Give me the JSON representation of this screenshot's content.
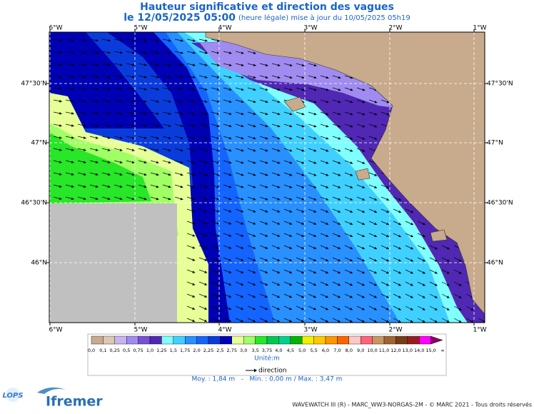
{
  "header": {
    "title": "Hauteur significative et direction des vagues",
    "date": "le 12/05/2025 05:00",
    "update": "(heure légale) mise à jour du 10/05/2025 05h19"
  },
  "map": {
    "lon_labels": [
      "6°W",
      "5°W",
      "4°W",
      "3°W",
      "2°W",
      "1°W"
    ],
    "lat_labels": [
      "47°30'N",
      "47°N",
      "46°30'N",
      "46°N"
    ]
  },
  "legend": {
    "labels": [
      "0,0",
      "0,1",
      "0,25",
      "0,5",
      "0,75",
      "1,0",
      "1,25",
      "1,5",
      "1,75",
      "2,0",
      "2,25",
      "2,5",
      "2,75",
      "3,0",
      "3,5",
      "3,75",
      "4,0",
      "4,5",
      "5,0",
      "5,5",
      "6,0",
      "7,0",
      "8,0",
      "9,0",
      "10,0",
      "11,0",
      "12,0",
      "13,0",
      "14,0",
      "15,0",
      "∞"
    ],
    "colors": [
      "#c8aa8c",
      "#dcc8b4",
      "#c8b4f0",
      "#a08cf0",
      "#7850d8",
      "#5028b4",
      "#80ffff",
      "#40d0ff",
      "#2890ff",
      "#1464ff",
      "#0a3cdc",
      "#0000b4",
      "#e6ff96",
      "#a0ff64",
      "#28e628",
      "#00c850",
      "#00d28c",
      "#00b400",
      "#f0f000",
      "#ffc800",
      "#ff9600",
      "#ff6400",
      "#ffc8c8",
      "#ff6478",
      "#c89664",
      "#a06432",
      "#783c14",
      "#961e1e",
      "#ff00ff",
      "#8c0064"
    ],
    "unit": "Unité:m",
    "direction": "direction",
    "stats": "Moy. : 1,84 m   -   Min. : 0,00 m / Max. : 3,47 m"
  },
  "footer": {
    "lops": "LOPS",
    "ifremer": "Ifremer",
    "credit": "WAVEWATCH III (R) - MARC_WW3-NORGAS-2M - © MARC 2021 - Tous droits réservés"
  }
}
